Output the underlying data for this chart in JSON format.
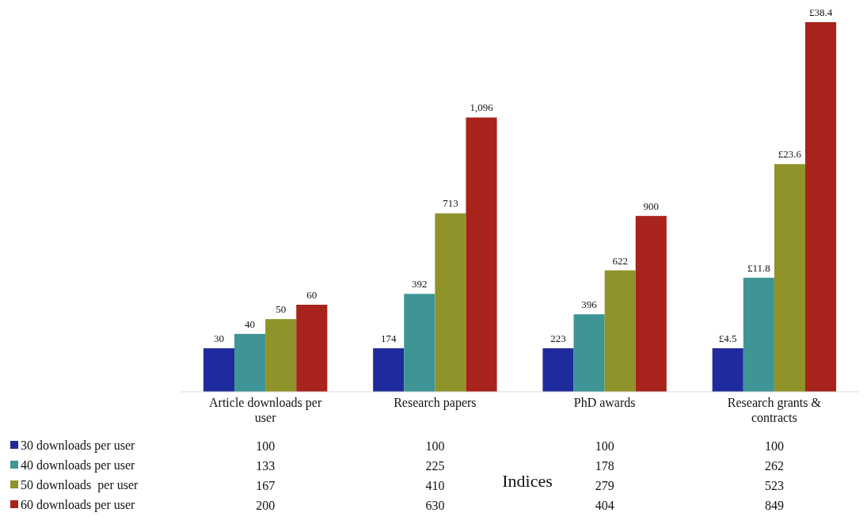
{
  "chart_data": {
    "type": "bar",
    "xlabel": "Indices",
    "categories": [
      "Article downloads per user",
      "Research papers",
      "PhD awards",
      "Research grants & contracts"
    ],
    "series": [
      {
        "name": "30 downloads per user",
        "color": "#1f2a9c",
        "values": [
          100,
          100,
          100,
          100
        ]
      },
      {
        "name": "40 downloads per user",
        "color": "#3f9595",
        "values": [
          133,
          225,
          178,
          262
        ]
      },
      {
        "name": "50 downloads  per user",
        "color": "#8f9329",
        "values": [
          167,
          410,
          279,
          523
        ]
      },
      {
        "name": "60 downloads per user",
        "color": "#a8231b",
        "values": [
          200,
          630,
          404,
          849
        ]
      }
    ],
    "annotations": [
      "30",
      "40",
      "50",
      "60",
      "174",
      "392",
      "713",
      "1,096",
      "223",
      "396",
      "622",
      "900",
      "£4.5",
      "£11.8",
      "£23.6",
      "£38.4"
    ],
    "tick_labels": "x",
    "data_labels": true,
    "legend": "bottom left"
  }
}
